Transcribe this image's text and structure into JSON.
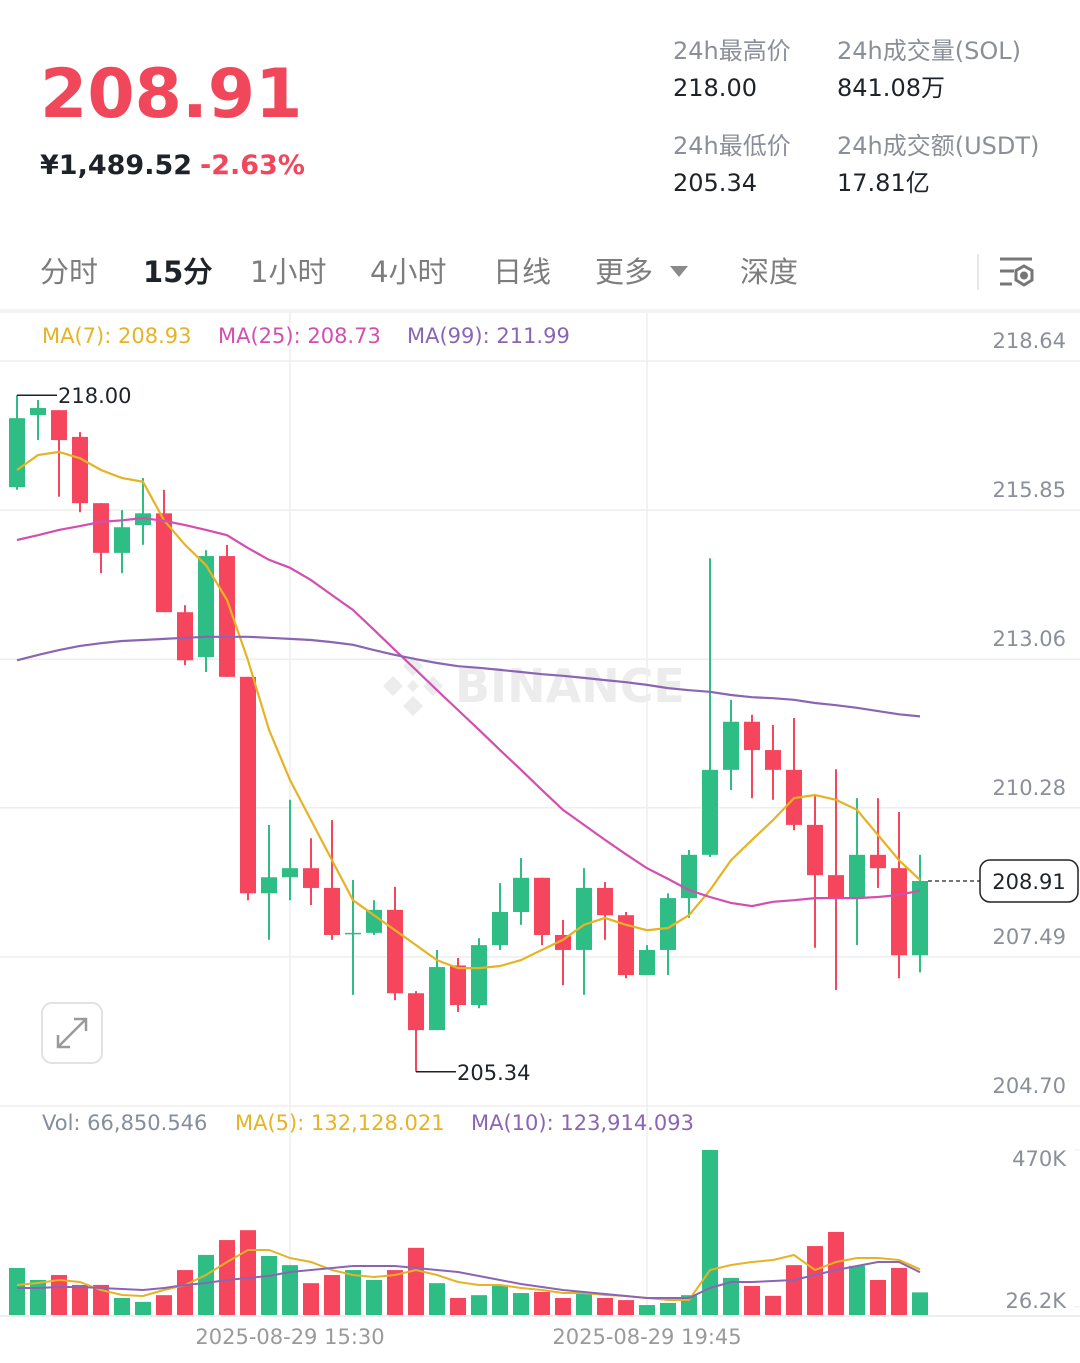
{
  "header": {
    "price": "208.91",
    "fiat": "¥1,489.52",
    "change": "-2.63%",
    "stats": [
      {
        "label": "24h最高价",
        "value": "218.00"
      },
      {
        "label": "24h成交量(SOL)",
        "value": "841.08万"
      },
      {
        "label": "24h最低价",
        "value": "205.34"
      },
      {
        "label": "24h成交额(USDT)",
        "value": "17.81亿"
      }
    ]
  },
  "tabs": [
    "分时",
    "15分",
    "1小时",
    "4小时",
    "日线",
    "更多",
    "深度"
  ],
  "active_tab": "15分",
  "watermark": "BINANCE",
  "chart_data": [
    {
      "type": "candlestick",
      "up_color": "#2ebd85",
      "down_color": "#f6465d",
      "ylim": [
        204.7,
        218.64
      ],
      "yticks": [
        218.64,
        215.85,
        213.06,
        210.28,
        207.49,
        {
          "value": 204.7,
          "label": "204.70"
        }
      ],
      "grid": true,
      "open": [
        216.28,
        217.63,
        217.72,
        217.22,
        215.98,
        215.05,
        215.57,
        215.79,
        213.94,
        213.1,
        214.99,
        212.73,
        208.68,
        208.98,
        209.15,
        208.78,
        207.92,
        207.94,
        208.37,
        206.81,
        206.12,
        207.33,
        206.59,
        207.71,
        208.33,
        208.97,
        207.9,
        207.62,
        208.78,
        208.27,
        207.15,
        207.62,
        208.59,
        209.4,
        210.99,
        211.89,
        211.36,
        210.99,
        209.96,
        209.02,
        208.59,
        209.4,
        209.15,
        207.52
      ],
      "high": [
        218.0,
        217.91,
        217.72,
        217.31,
        215.98,
        215.85,
        216.45,
        216.23,
        214.07,
        215.1,
        215.2,
        212.73,
        209.96,
        210.43,
        209.71,
        210.05,
        208.93,
        208.55,
        208.8,
        206.85,
        207.62,
        207.47,
        207.84,
        208.87,
        209.34,
        208.97,
        208.18,
        209.15,
        208.89,
        208.33,
        207.71,
        208.68,
        209.49,
        214.95,
        212.3,
        212.02,
        211.83,
        211.96,
        210.52,
        211.0,
        210.46,
        210.46,
        210.2,
        209.4
      ],
      "low": [
        216.23,
        217.16,
        216.1,
        215.81,
        214.67,
        214.67,
        215.2,
        213.94,
        212.95,
        212.82,
        212.73,
        208.55,
        207.81,
        208.55,
        208.46,
        207.81,
        206.78,
        207.9,
        206.68,
        205.34,
        206.12,
        206.46,
        206.53,
        207.62,
        208.09,
        207.71,
        206.96,
        206.78,
        207.81,
        207.09,
        207.15,
        207.15,
        208.22,
        209.36,
        210.61,
        210.46,
        210.43,
        209.86,
        207.66,
        206.87,
        207.71,
        208.78,
        207.09,
        207.2
      ],
      "close": [
        217.57,
        217.76,
        217.16,
        215.98,
        215.05,
        215.53,
        215.79,
        213.94,
        213.04,
        214.99,
        212.73,
        208.68,
        208.98,
        209.15,
        208.78,
        207.9,
        207.94,
        208.37,
        206.81,
        206.12,
        207.3,
        206.59,
        207.71,
        208.33,
        208.97,
        207.9,
        207.62,
        208.78,
        208.27,
        207.15,
        207.62,
        208.59,
        209.4,
        210.99,
        211.89,
        211.36,
        210.99,
        209.96,
        209.02,
        208.59,
        209.4,
        209.15,
        207.52,
        208.91
      ],
      "series": [
        {
          "name": "MA(7): 208.93",
          "color": "#e6b325",
          "values": [
            216.6,
            216.88,
            216.94,
            216.82,
            216.6,
            216.45,
            216.38,
            215.66,
            215.2,
            214.82,
            214.17,
            213.04,
            211.74,
            210.8,
            210.05,
            209.3,
            208.55,
            208.27,
            207.99,
            207.71,
            207.43,
            207.28,
            207.28,
            207.32,
            207.43,
            207.62,
            207.81,
            208.09,
            208.22,
            208.09,
            207.99,
            208.03,
            208.27,
            208.74,
            209.3,
            209.68,
            210.05,
            210.46,
            210.52,
            210.43,
            210.24,
            209.77,
            209.3,
            208.93
          ]
        },
        {
          "name": "MA(25): 208.73",
          "color": "#d24fb0",
          "values": [
            215.29,
            215.38,
            215.48,
            215.55,
            215.63,
            215.66,
            215.7,
            215.65,
            215.57,
            215.48,
            215.38,
            215.14,
            214.92,
            214.77,
            214.54,
            214.26,
            213.98,
            213.61,
            213.23,
            212.86,
            212.48,
            212.11,
            211.74,
            211.36,
            210.99,
            210.61,
            210.24,
            209.96,
            209.68,
            209.41,
            209.15,
            208.95,
            208.74,
            208.61,
            208.5,
            208.44,
            208.52,
            208.55,
            208.59,
            208.59,
            208.59,
            208.61,
            208.65,
            208.73
          ]
        },
        {
          "name": "MA(99): 211.99",
          "color": "#8b65b3",
          "values": [
            213.04,
            213.14,
            213.23,
            213.31,
            213.36,
            213.4,
            213.42,
            213.44,
            213.46,
            213.48,
            213.48,
            213.48,
            213.46,
            213.44,
            213.42,
            213.38,
            213.33,
            213.23,
            213.14,
            213.06,
            212.99,
            212.93,
            212.9,
            212.86,
            212.82,
            212.78,
            212.75,
            212.71,
            212.67,
            212.63,
            212.58,
            212.52,
            212.48,
            212.45,
            212.39,
            212.35,
            212.33,
            212.3,
            212.24,
            212.2,
            212.15,
            212.09,
            212.03,
            211.99
          ]
        }
      ],
      "high_marker": {
        "value": 218,
        "label": "218.00"
      },
      "low_marker": 205.34,
      "last_price": 208.91
    },
    {
      "type": "bar",
      "ylim": [
        0,
        470000
      ],
      "yticks": [
        {
          "value": 470000,
          "label": "470K"
        },
        {
          "value": 26200,
          "label": "26.2K"
        }
      ],
      "categories": [
        null,
        null,
        null,
        null,
        null,
        null,
        null,
        null,
        null,
        null,
        null,
        null,
        null,
        "2025-08-29 15:30",
        null,
        null,
        null,
        null,
        null,
        null,
        null,
        null,
        null,
        null,
        null,
        null,
        null,
        null,
        null,
        null,
        "2025-08-29 19:45",
        null,
        null,
        null,
        null,
        null,
        null,
        null,
        null,
        null,
        null,
        null,
        null,
        null
      ],
      "series": [
        {
          "name": "Vol: 66,850.546",
          "color": "#848e9c",
          "values": [
            136000,
            102000,
            116000,
            88000,
            88000,
            51000,
            40000,
            59000,
            130000,
            173000,
            215000,
            243000,
            170000,
            144000,
            93000,
            116000,
            130000,
            102000,
            130000,
            193000,
            93000,
            51000,
            59000,
            88000,
            65000,
            68000,
            51000,
            68000,
            51000,
            45000,
            31000,
            37000,
            59000,
            470000,
            108000,
            85000,
            57000,
            144000,
            198000,
            238000,
            142000,
            102000,
            136000,
            66850.546
          ]
        },
        {
          "name": "MA(5): 132,128.021",
          "color": "#e6b325",
          "values": [
            87800,
            93400,
            101900,
            96300,
            73600,
            59500,
            56600,
            73600,
            87800,
            116100,
            152900,
            186900,
            186900,
            164200,
            152900,
            130200,
            116100,
            110400,
            116100,
            130200,
            116100,
            96300,
            87800,
            87800,
            79300,
            73600,
            65100,
            65100,
            59500,
            56600,
            51000,
            45300,
            45300,
            130200,
            144400,
            152900,
            158600,
            172700,
            130200,
            152900,
            164200,
            164200,
            158600,
            132128.021
          ]
        },
        {
          "name": "MA(10): 123,914.093",
          "color": "#8b65b3",
          "values": [
            79300,
            79300,
            82100,
            82100,
            79300,
            76400,
            73600,
            79300,
            87800,
            93400,
            101900,
            107600,
            113300,
            124600,
            130200,
            135900,
            141600,
            141600,
            141600,
            135900,
            130200,
            124600,
            113300,
            101900,
            90600,
            82100,
            73600,
            68000,
            62300,
            56600,
            51000,
            51000,
            51000,
            79300,
            96300,
            96300,
            99100,
            101900,
            116100,
            130200,
            141600,
            152900,
            152900,
            123914.093
          ]
        }
      ]
    }
  ]
}
